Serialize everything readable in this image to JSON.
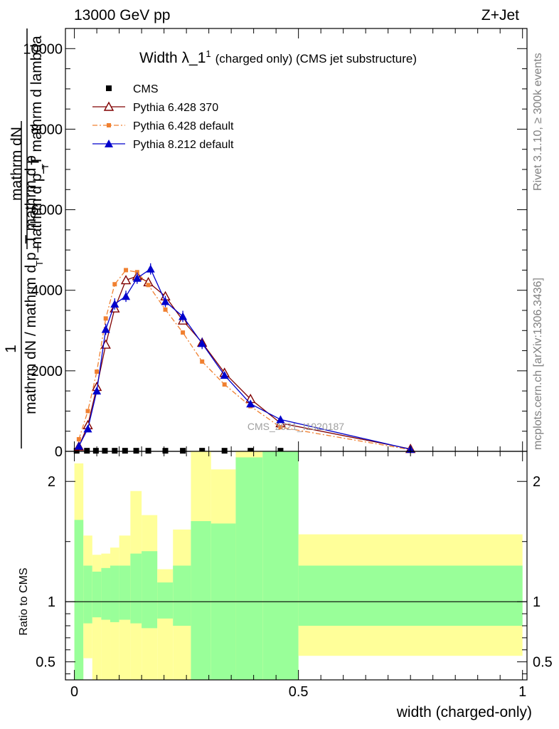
{
  "header": {
    "energy": "13000 GeV pp",
    "process": "Z+Jet"
  },
  "side_labels": {
    "rivet": "Rivet 3.1.10, ≥ 300k events",
    "mcplots": "mcplots.cern.ch [arXiv:1306.3436]"
  },
  "watermark": "CMS_2021_I1920187",
  "chart_data": [
    {
      "type": "line",
      "title_main": "Width λ_1",
      "title_sup": "1",
      "title_rest": "(charged only) (CMS jet substructure)",
      "ylabel_num": "mathrm dN",
      "ylabel_den": "mathrm d p_T mathrm d lambda",
      "ylabel_sub": "T",
      "ylabel2_one": "1",
      "ylabel2_den": "mathrm dN / mathrm d p_T mathrm d p",
      "ylabel2_sub": "T",
      "ylim": [
        0,
        10500
      ],
      "xlim": [
        -0.02,
        1.01
      ],
      "yticks": [
        0,
        2000,
        4000,
        6000,
        8000,
        10000
      ],
      "ytick_labels": [
        "0",
        "2000",
        "4000",
        "6000",
        "8000",
        "10000"
      ],
      "legend": [
        "CMS",
        "Pythia 6.428 370",
        "Pythia 6.428 default",
        "Pythia 8.212 default"
      ],
      "series": [
        {
          "name": "CMS",
          "color": "#000000",
          "x": [
            0.005,
            0.028,
            0.048,
            0.068,
            0.09,
            0.113,
            0.138,
            0.165,
            0.203,
            0.242,
            0.285,
            0.335,
            0.393,
            0.46
          ],
          "values": [
            15,
            15,
            15,
            15,
            15,
            15,
            15,
            15,
            15,
            15,
            15,
            15,
            15,
            15
          ]
        },
        {
          "name": "Pythia 6.428 370",
          "color": "#800000",
          "x": [
            0.01,
            0.03,
            0.05,
            0.07,
            0.09,
            0.115,
            0.14,
            0.165,
            0.203,
            0.242,
            0.285,
            0.335,
            0.393,
            0.46,
            0.75
          ],
          "values": [
            120,
            650,
            1600,
            2650,
            3550,
            4250,
            4350,
            4200,
            3850,
            3250,
            2700,
            1950,
            1300,
            700,
            60
          ]
        },
        {
          "name": "Pythia 6.428 default",
          "color": "#f08030",
          "x": [
            0.01,
            0.03,
            0.05,
            0.07,
            0.09,
            0.115,
            0.14,
            0.165,
            0.203,
            0.242,
            0.285,
            0.335,
            0.393,
            0.46,
            0.75
          ],
          "values": [
            300,
            1000,
            1980,
            3300,
            4150,
            4500,
            4450,
            4130,
            3520,
            2950,
            2230,
            1660,
            1120,
            600,
            40
          ]
        },
        {
          "name": "Pythia 8.212 default",
          "color": "#0000cc",
          "x": [
            0.01,
            0.03,
            0.05,
            0.07,
            0.09,
            0.115,
            0.14,
            0.17,
            0.203,
            0.242,
            0.285,
            0.335,
            0.393,
            0.46,
            0.75
          ],
          "values": [
            130,
            560,
            1500,
            3030,
            3660,
            3850,
            4300,
            4530,
            3720,
            3350,
            2680,
            1890,
            1180,
            790,
            50
          ]
        }
      ]
    },
    {
      "type": "area",
      "ylabel": "Ratio to CMS",
      "xlabel": "width (charged-only)",
      "ylim": [
        0.35,
        2.25
      ],
      "xlim": [
        -0.02,
        1.01
      ],
      "yticks": [
        0.5,
        1,
        2
      ],
      "ytick_labels": [
        "0.5",
        "1",
        "2"
      ],
      "xticks": [
        0,
        0.5,
        1
      ],
      "xtick_labels": [
        "0",
        "0.5",
        "1"
      ],
      "bins": [
        0,
        0.02,
        0.04,
        0.06,
        0.08,
        0.1,
        0.125,
        0.15,
        0.185,
        0.22,
        0.26,
        0.305,
        0.36,
        0.42,
        0.5,
        1.0
      ],
      "stat_band_low": [
        0.3,
        0.82,
        0.87,
        0.85,
        0.83,
        0.85,
        0.82,
        0.78,
        0.86,
        0.8,
        0.3,
        0.3,
        0.3,
        0.3,
        0.8
      ],
      "stat_band_high": [
        1.68,
        1.3,
        1.25,
        1.28,
        1.3,
        1.3,
        1.4,
        1.42,
        1.16,
        1.3,
        1.67,
        1.65,
        2.2,
        2.3,
        1.3
      ],
      "syst_band_low": [
        0.3,
        0.53,
        0.3,
        0.3,
        0.3,
        0.3,
        0.3,
        0.3,
        0.3,
        0.3,
        0.3,
        0.38,
        0.3,
        0.3,
        0.55
      ],
      "syst_band_high": [
        2.15,
        1.55,
        1.39,
        1.4,
        1.45,
        1.55,
        1.92,
        1.72,
        1.27,
        1.6,
        2.3,
        2.1,
        2.3,
        2.3,
        1.56
      ],
      "band_colors": {
        "stat": "#99ff99",
        "syst": "#ffff99"
      }
    }
  ]
}
